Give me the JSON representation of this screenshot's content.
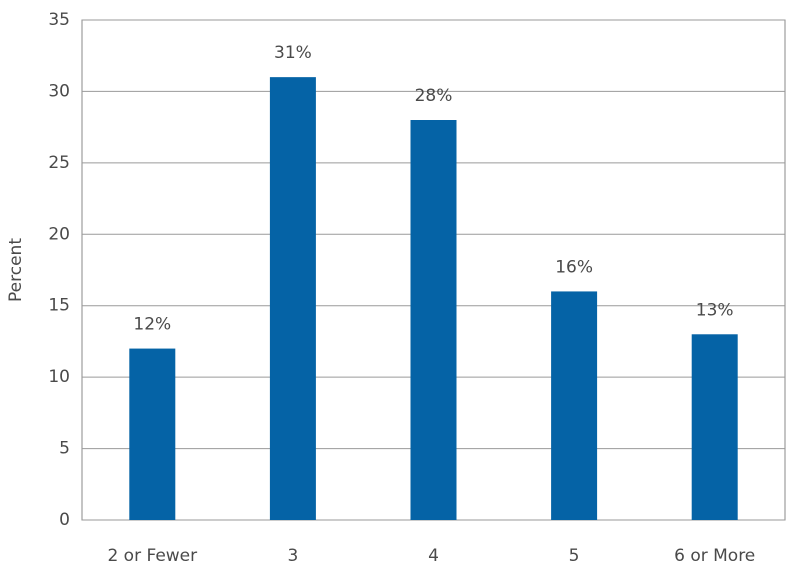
{
  "chart_data": {
    "type": "bar",
    "y_label": "Percent",
    "categories": [
      "2 or Fewer",
      "3",
      "4",
      "5",
      "6 or More"
    ],
    "values": [
      12,
      31,
      28,
      16,
      13
    ],
    "value_labels": [
      "12%",
      "31%",
      "28%",
      "16%",
      "13%"
    ],
    "color": "#0563a6",
    "ylim": [
      0,
      35
    ],
    "yticks": [
      0,
      5,
      10,
      15,
      20,
      25,
      30,
      35
    ],
    "grid": true
  }
}
